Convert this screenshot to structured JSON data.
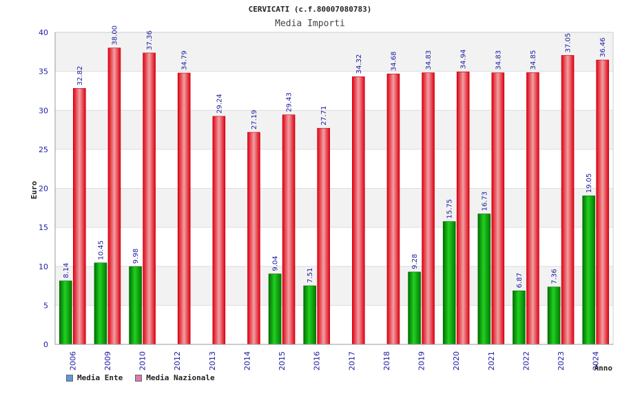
{
  "chart_data": {
    "type": "bar",
    "title": "CERVICATI (c.f.80007080783)",
    "subtitle": "Media Importi",
    "ylabel": "Euro",
    "xlabel": "Anno",
    "ylim": [
      0,
      40
    ],
    "yticks": [
      0,
      5,
      10,
      15,
      20,
      25,
      30,
      35,
      40
    ],
    "grid": true,
    "legend_position": "bottom-left",
    "categories": [
      "2006",
      "2009",
      "2010",
      "2012",
      "2013",
      "2014",
      "2015",
      "2016",
      "2017",
      "2018",
      "2019",
      "2020",
      "2021",
      "2022",
      "2023",
      "2024"
    ],
    "series": [
      {
        "name": "Media Ente",
        "color": "#00aa00",
        "legend_color": "#5b9bd5",
        "values": [
          8.14,
          10.45,
          9.98,
          null,
          null,
          null,
          9.04,
          7.51,
          null,
          null,
          9.28,
          15.75,
          16.73,
          6.87,
          7.36,
          19.05
        ],
        "labels": [
          "8.14",
          "10.45",
          "9.98",
          null,
          null,
          null,
          "9.04",
          "7.51",
          null,
          null,
          "9.28",
          "15.75",
          "16.73",
          "6.87",
          "7.36",
          "19.05"
        ]
      },
      {
        "name": "Media Nazionale",
        "color": "#e8101a",
        "legend_color": "#d97ab0",
        "values": [
          32.82,
          38.0,
          37.36,
          34.79,
          29.24,
          27.19,
          29.43,
          27.71,
          34.32,
          34.68,
          34.83,
          34.94,
          34.83,
          34.85,
          37.05,
          36.46
        ],
        "labels": [
          "32.82",
          "38.00",
          "37.36",
          "34.79",
          "29.24",
          "27.19",
          "29.43",
          "27.71",
          "34.32",
          "34.68",
          "34.83",
          "34.94",
          "34.83",
          "34.85",
          "37.05",
          "36.46"
        ]
      }
    ]
  }
}
